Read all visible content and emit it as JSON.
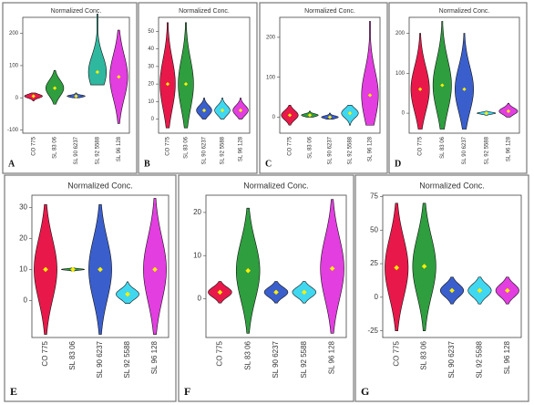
{
  "chart_data": [
    {
      "type": "violin",
      "label": "A",
      "title": "Normalized Conc.",
      "categories": [
        "CO 775",
        "SL 83 06",
        "SL 90 6237",
        "SL 92 5588",
        "SL 96 128"
      ],
      "colors": [
        "#e8194a",
        "#2e9e3f",
        "#3a5fcd",
        "#2fb8a0",
        "#e23ee0"
      ],
      "min": [
        -10,
        -20,
        0,
        40,
        -80
      ],
      "max": [
        15,
        85,
        15,
        260,
        210
      ],
      "mean": [
        5,
        30,
        5,
        80,
        65
      ],
      "ylim": [
        -110,
        250
      ],
      "yticks": [
        -100,
        0,
        100,
        200
      ]
    },
    {
      "type": "violin",
      "label": "B",
      "title": "Normalized Conc.",
      "categories": [
        "CO 775",
        "SL 83 06",
        "SL 90 6237",
        "SL 92 5588",
        "SL 96 128"
      ],
      "colors": [
        "#e8194a",
        "#2e9e3f",
        "#3a5fcd",
        "#40d8f0",
        "#e23ee0"
      ],
      "min": [
        -5,
        -5,
        0,
        0,
        0
      ],
      "max": [
        55,
        55,
        12,
        12,
        12
      ],
      "mean": [
        20,
        20,
        5,
        5,
        5
      ],
      "ylim": [
        -8,
        58
      ],
      "yticks": [
        0,
        10,
        20,
        30,
        40,
        50
      ]
    },
    {
      "type": "violin",
      "label": "C",
      "title": "Normalized Conc.",
      "categories": [
        "CO 775",
        "SL 83 06",
        "SL 90 6237",
        "SL 92 5588",
        "SL 96 128"
      ],
      "colors": [
        "#e8194a",
        "#2e9e3f",
        "#3a5fcd",
        "#40d8f0",
        "#e23ee0"
      ],
      "min": [
        -20,
        0,
        -5,
        -20,
        -20
      ],
      "max": [
        30,
        15,
        10,
        30,
        240
      ],
      "mean": [
        5,
        5,
        0,
        10,
        55
      ],
      "ylim": [
        -40,
        250
      ],
      "yticks": [
        0,
        100,
        200
      ]
    },
    {
      "type": "violin",
      "label": "D",
      "title": "Normalized Conc.",
      "categories": [
        "CO 775",
        "SL 83 06",
        "SL 90 6237",
        "SL 92 5588",
        "SL 96 128"
      ],
      "colors": [
        "#e8194a",
        "#2e9e3f",
        "#3a5fcd",
        "#40d8f0",
        "#e23ee0"
      ],
      "min": [
        -40,
        -40,
        -40,
        -5,
        -10
      ],
      "max": [
        200,
        230,
        200,
        5,
        25
      ],
      "mean": [
        60,
        70,
        60,
        0,
        5
      ],
      "ylim": [
        -50,
        240
      ],
      "yticks": [
        0,
        100,
        200
      ]
    },
    {
      "type": "violin",
      "label": "E",
      "title": "Normalized Conc.",
      "categories": [
        "CO 775",
        "SL 83 06",
        "SL 90 6237",
        "SL 92 5588",
        "SL 96 128"
      ],
      "colors": [
        "#e8194a",
        "#2e9e3f",
        "#3a5fcd",
        "#40d8f0",
        "#e23ee0"
      ],
      "min": [
        -11,
        9.5,
        -11,
        -1,
        -11
      ],
      "max": [
        31,
        10.5,
        31,
        6,
        33
      ],
      "mean": [
        10,
        10,
        10,
        2,
        10
      ],
      "ylim": [
        -12,
        34
      ],
      "yticks": [
        0,
        10,
        20,
        30
      ]
    },
    {
      "type": "violin",
      "label": "F",
      "title": "Normalized Conc.",
      "categories": [
        "CO 775",
        "SL 83 06",
        "SL 90 6237",
        "SL 92 5588",
        "SL 96 128"
      ],
      "colors": [
        "#e8194a",
        "#2e9e3f",
        "#3a5fcd",
        "#40d8f0",
        "#e23ee0"
      ],
      "min": [
        -1,
        -8,
        -1,
        -1,
        -8
      ],
      "max": [
        4,
        21,
        4,
        4,
        23
      ],
      "mean": [
        1.5,
        6.5,
        1.5,
        1.5,
        7
      ],
      "ylim": [
        -9,
        24
      ],
      "yticks": [
        0,
        10,
        20
      ]
    },
    {
      "type": "violin",
      "label": "G",
      "title": "Normalized Conc.",
      "categories": [
        "CO 775",
        "SL 83 06",
        "SL 90 6237",
        "SL 92 5588",
        "SL 96 128"
      ],
      "colors": [
        "#e8194a",
        "#2e9e3f",
        "#3a5fcd",
        "#40d8f0",
        "#e23ee0"
      ],
      "min": [
        -25,
        -25,
        -5,
        -5,
        -5
      ],
      "max": [
        70,
        70,
        15,
        15,
        15
      ],
      "mean": [
        22,
        23,
        5,
        5,
        5
      ],
      "ylim": [
        -30,
        76
      ],
      "yticks": [
        -25,
        0,
        25,
        50,
        75
      ]
    }
  ]
}
